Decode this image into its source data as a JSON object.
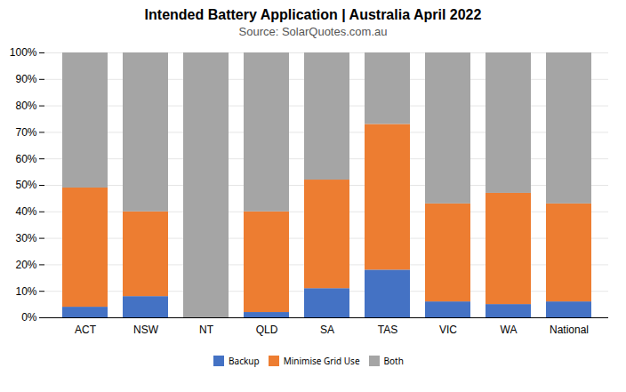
{
  "chart_data": {
    "type": "bar",
    "stacked": true,
    "title": "Intended Battery Application | Australia April 2022",
    "subtitle": "Source: SolarQuotes.com.au",
    "categories": [
      "ACT",
      "NSW",
      "NT",
      "QLD",
      "SA",
      "TAS",
      "VIC",
      "WA",
      "National"
    ],
    "series": [
      {
        "name": "Backup",
        "color": "#4472c4",
        "values": [
          4,
          8,
          0,
          2,
          11,
          18,
          6,
          5,
          6
        ]
      },
      {
        "name": "Minimise Grid Use",
        "color": "#ed7d31",
        "values": [
          45,
          32,
          0,
          38,
          41,
          55,
          37,
          42,
          37
        ]
      },
      {
        "name": "Both",
        "color": "#a5a5a5",
        "values": [
          51,
          60,
          100,
          60,
          48,
          27,
          57,
          53,
          57
        ]
      }
    ],
    "ylim": [
      0,
      100
    ],
    "yticks": [
      {
        "value": 0,
        "label": "0%"
      },
      {
        "value": 10,
        "label": "10%"
      },
      {
        "value": 20,
        "label": "20%"
      },
      {
        "value": 30,
        "label": "30%"
      },
      {
        "value": 40,
        "label": "40%"
      },
      {
        "value": 50,
        "label": "50%"
      },
      {
        "value": 60,
        "label": "60%"
      },
      {
        "value": 70,
        "label": "70%"
      },
      {
        "value": 80,
        "label": "80%"
      },
      {
        "value": 90,
        "label": "90%"
      },
      {
        "value": 100,
        "label": "100%"
      }
    ],
    "grid": true,
    "legend": "bottom"
  }
}
